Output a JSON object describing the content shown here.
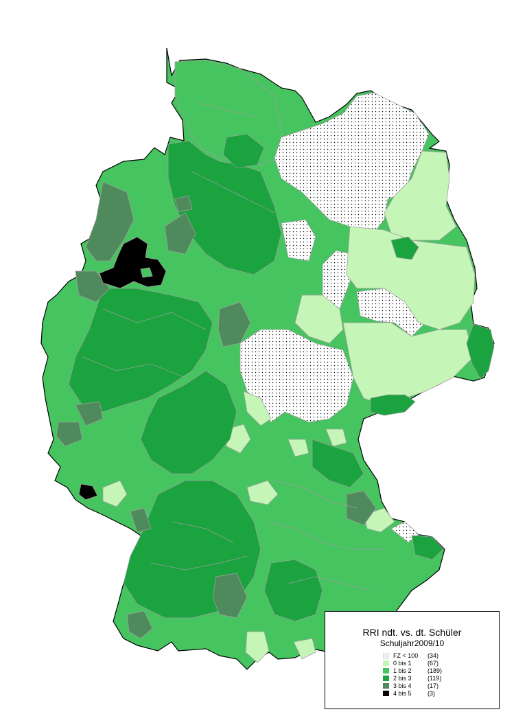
{
  "legend": {
    "title": "RRI ndt. vs. dt. Schüler",
    "subtitle": "Schuljahr2009/10",
    "items": [
      {
        "label": "FZ < 100",
        "count": "(34)",
        "color": "#ffffff",
        "pattern": "dots"
      },
      {
        "label": "0 bis 1",
        "count": "(67)",
        "color": "#c6f5b8"
      },
      {
        "label": "1 bis 2",
        "count": "(189)",
        "color": "#45c45f"
      },
      {
        "label": "2 bis 3",
        "count": "(119)",
        "color": "#1aa33f"
      },
      {
        "label": "3 bis 4",
        "count": "(17)",
        "color": "#4e8a5c"
      },
      {
        "label": "4 bis 5",
        "count": "(3)",
        "color": "#000000"
      }
    ]
  },
  "colors": {
    "border": "#a0a0a0",
    "outline": "#000000"
  }
}
